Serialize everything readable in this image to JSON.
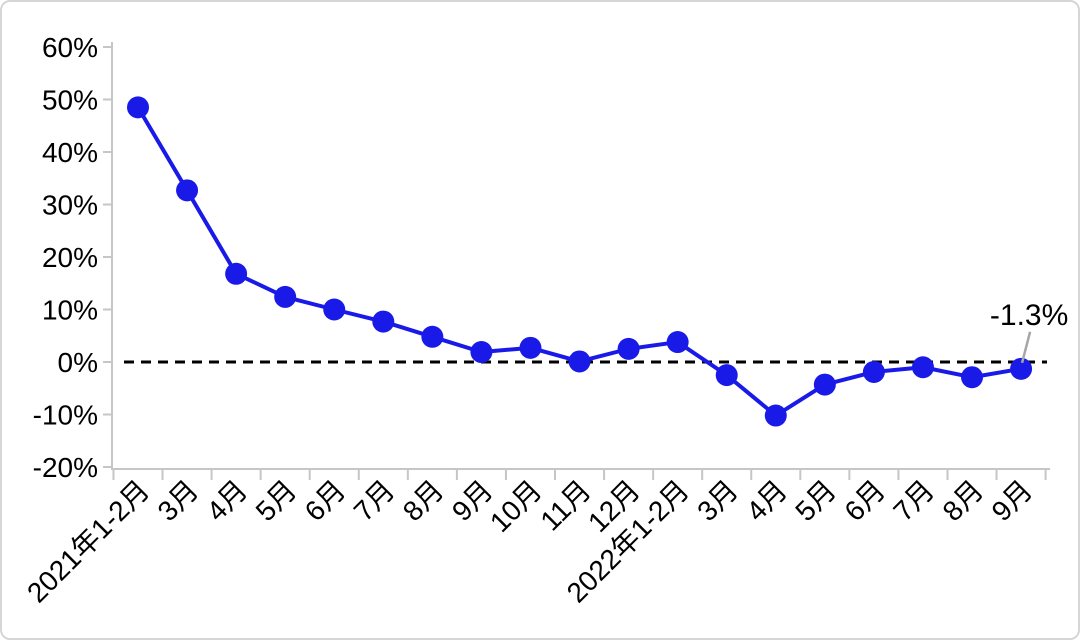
{
  "page": {
    "background": "#ffffff",
    "frame_border_color": "#d6d6d6"
  },
  "chart_data": {
    "type": "line",
    "title": "",
    "xlabel": "",
    "ylabel": "",
    "categories": [
      "2021年1-2月",
      "3月",
      "4月",
      "5月",
      "6月",
      "7月",
      "8月",
      "9月",
      "10月",
      "11月",
      "12月",
      "2022年1-2月",
      "3月",
      "4月",
      "5月",
      "6月",
      "7月",
      "8月",
      "9月"
    ],
    "values": [
      48.5,
      32.7,
      16.8,
      12.4,
      10.0,
      7.7,
      4.8,
      1.9,
      2.7,
      0.1,
      2.5,
      3.8,
      -2.5,
      -10.2,
      -4.3,
      -1.9,
      -1.0,
      -2.9,
      -1.3
    ],
    "ylim": [
      -20,
      60
    ],
    "yticks": [
      60,
      50,
      40,
      30,
      20,
      10,
      0,
      -10,
      -20
    ],
    "ytick_labels": [
      "60%",
      "50%",
      "40%",
      "30%",
      "20%",
      "10%",
      "0%",
      "-10%",
      "-20%"
    ],
    "grid": false,
    "legend": "none",
    "zero_line": {
      "style": "dashed",
      "color": "#000000"
    },
    "line_color": "#1a1ae8",
    "marker_color": "#1a1ae8",
    "axis_color": "#c6c6c6",
    "label_color": "#000000",
    "annotation": {
      "text": "-1.3%",
      "target_index": 18,
      "leader_color": "#a6a6a6"
    }
  }
}
